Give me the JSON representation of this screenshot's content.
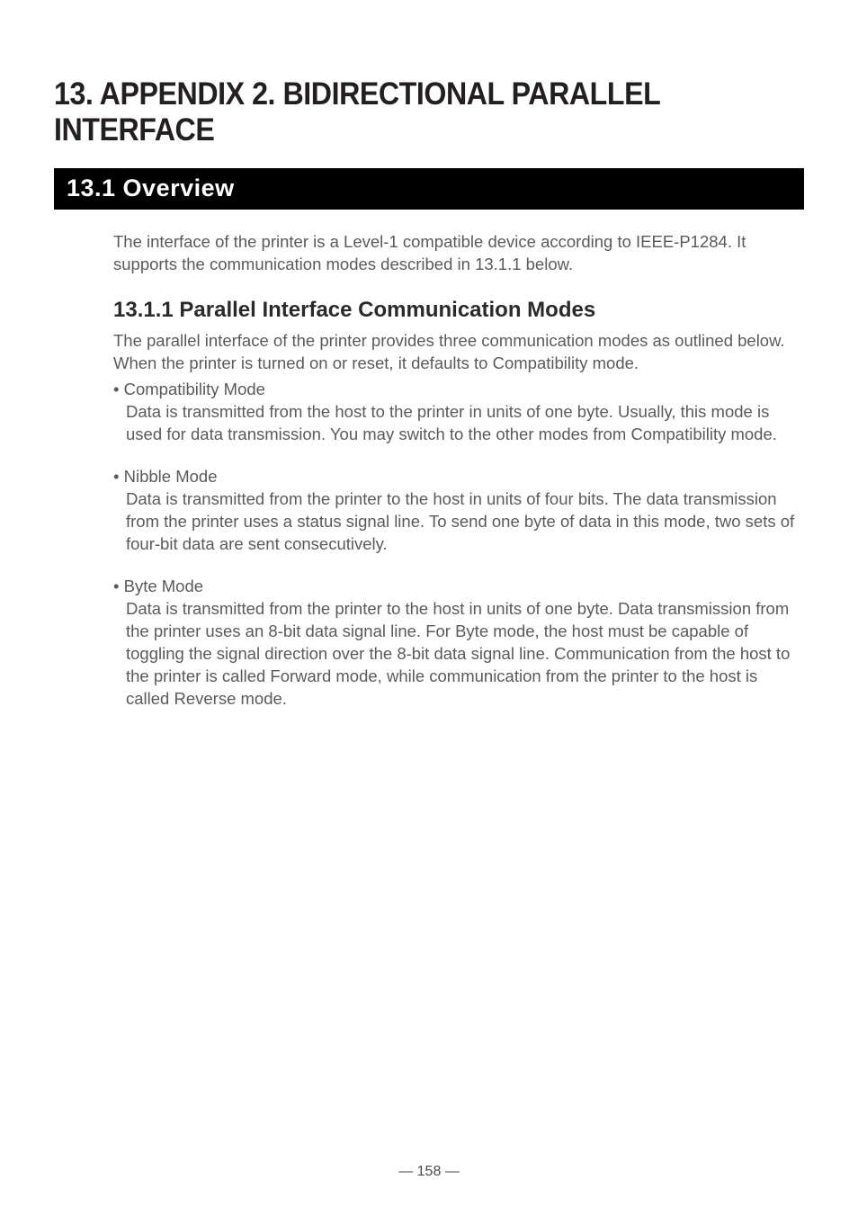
{
  "chapter": {
    "title": "13. APPENDIX 2. BIDIRECTIONAL PARALLEL INTERFACE"
  },
  "section": {
    "number_title": "13.1  Overview",
    "intro": "The interface of the printer is a Level-1 compatible device according to IEEE-P1284. It supports the communication modes described in 13.1.1 below."
  },
  "subsection": {
    "heading": "13.1.1  Parallel Interface Communication Modes",
    "intro": "The parallel interface of the printer provides three communication modes as outlined below. When the printer is turned on or reset, it defaults to Compatibility mode.",
    "modes": [
      {
        "label": "• Compatibility Mode",
        "body": "Data is transmitted from the host to the printer in units of one byte. Usually, this mode is used for data transmission. You may switch to the other modes from Compatibility mode."
      },
      {
        "label": "• Nibble Mode",
        "body": "Data is transmitted from the printer to the host in units of four bits. The data transmission from the printer uses a status signal line. To send one byte of data in this mode, two sets of four-bit data are sent consecutively."
      },
      {
        "label": "• Byte Mode",
        "body": "Data is transmitted from the printer to the host in units of one byte. Data transmission from the printer uses an 8-bit data signal line. For Byte mode, the host must be capable of toggling the signal direction over the 8-bit data signal line. Communication from the host to the printer is called Forward mode, while communication from the printer to the host is called Reverse mode."
      }
    ]
  },
  "footer": {
    "page_number": "— 158 —"
  },
  "style": {
    "background_color": "#ffffff",
    "text_color": "#5a5a5a",
    "heading_color": "#2a2a2a",
    "section_bg": "#000000",
    "section_fg": "#ffffff",
    "chapter_fontsize": 35,
    "section_fontsize": 27,
    "subheading_fontsize": 24,
    "body_fontsize": 18.5,
    "footer_fontsize": 16
  }
}
